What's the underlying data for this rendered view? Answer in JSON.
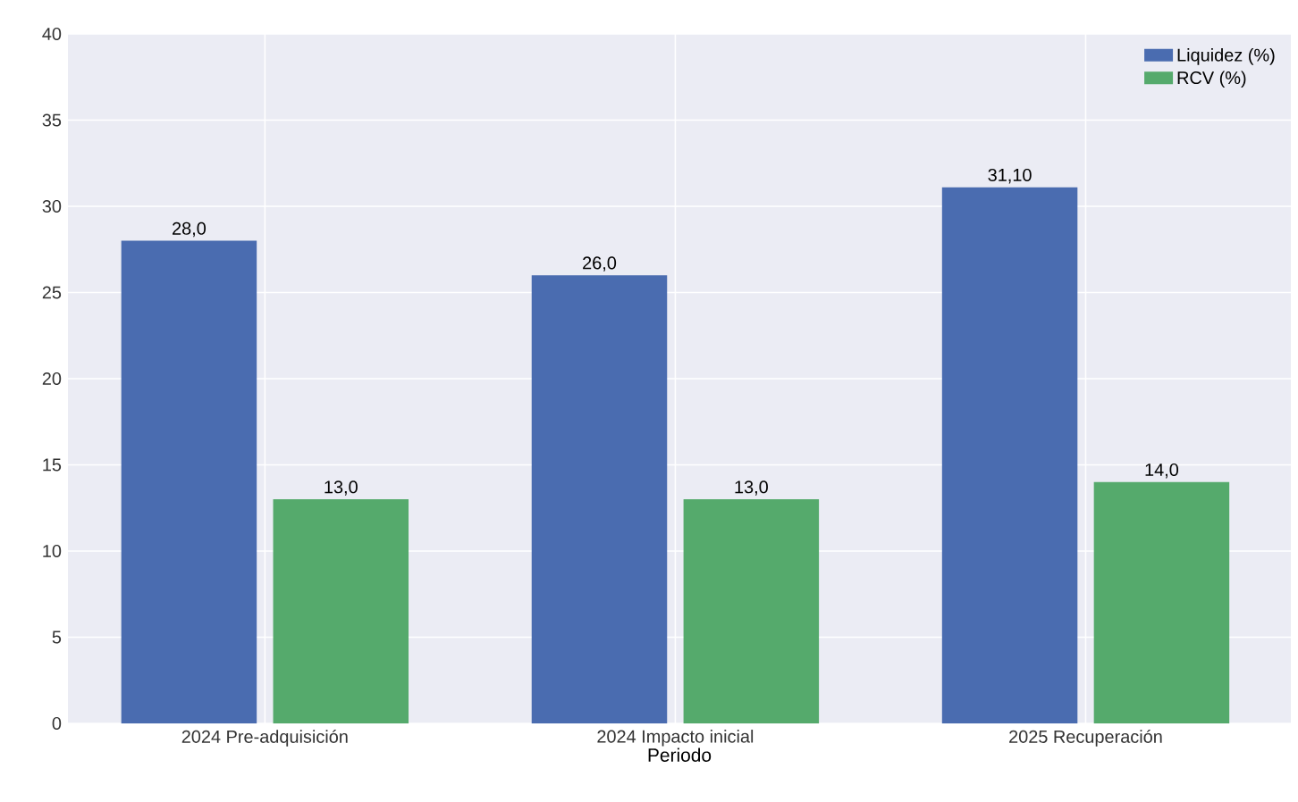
{
  "chart_data": {
    "type": "bar",
    "xlabel": "Periodo",
    "categories": [
      "2024 Pre-adquisición",
      "2024 Impacto inicial",
      "2025 Recuperación"
    ],
    "series": [
      {
        "name": "Liquidez (%)",
        "color": "#4a6cb0",
        "values": [
          28.0,
          26.0,
          31.1
        ],
        "value_labels": [
          "28,0",
          "26,0",
          "31,10"
        ]
      },
      {
        "name": "RCV (%)",
        "color": "#55aa6c",
        "values": [
          13.0,
          13.0,
          14.0
        ],
        "value_labels": [
          "13,0",
          "13,0",
          "14,0"
        ]
      }
    ],
    "ylim": [
      0,
      40
    ],
    "yticks": [
      0,
      5,
      10,
      15,
      20,
      25,
      30,
      35,
      40
    ],
    "grid": true,
    "legend": "top right"
  }
}
